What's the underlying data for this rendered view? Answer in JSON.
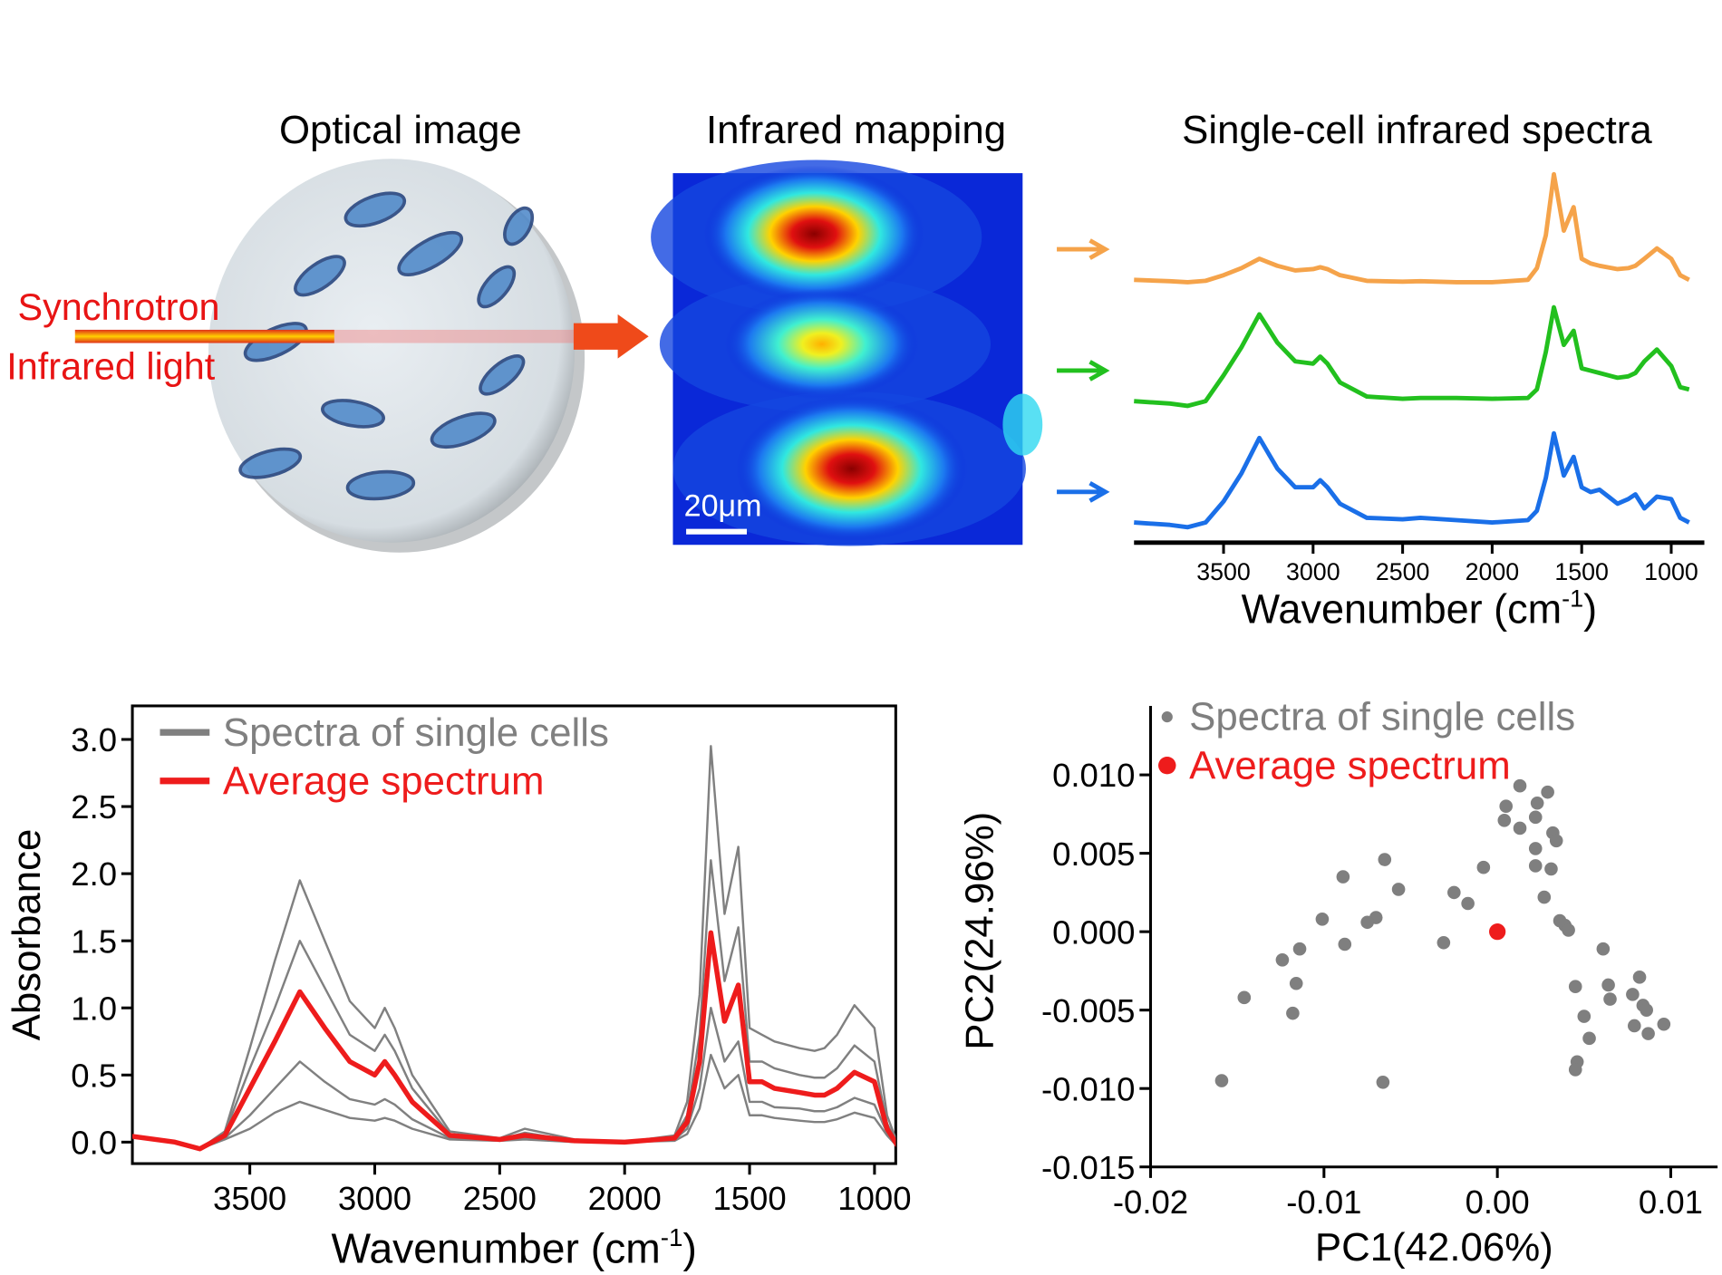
{
  "illustration": {
    "optical_title": "Optical image",
    "mapping_title": "Infrared mapping",
    "beam_label": [
      "Synchrotron",
      "Infrared light"
    ],
    "scale_bar": "20μm"
  },
  "chart_data": [
    {
      "type": "line",
      "title": "Single-cell infrared spectra",
      "x": [
        4000,
        3800,
        3700,
        3600,
        3500,
        3400,
        3300,
        3200,
        3100,
        3000,
        2960,
        2920,
        2850,
        2700,
        2500,
        2400,
        2200,
        2000,
        1800,
        1750,
        1700,
        1655,
        1600,
        1545,
        1500,
        1450,
        1400,
        1300,
        1240,
        1200,
        1150,
        1080,
        1000,
        950,
        900
      ],
      "series": [
        {
          "color": "#f5a34a",
          "values": [
            0.05,
            0.02,
            0,
            0.03,
            0.15,
            0.3,
            0.5,
            0.35,
            0.25,
            0.28,
            0.32,
            0.28,
            0.15,
            0.03,
            0.01,
            0.02,
            0,
            0,
            0.05,
            0.3,
            1.0,
            2.3,
            1.1,
            1.6,
            0.5,
            0.4,
            0.35,
            0.28,
            0.3,
            0.35,
            0.5,
            0.72,
            0.5,
            0.15,
            0.05
          ]
        },
        {
          "color": "#22c01e",
          "values": [
            0.05,
            0.0,
            -0.05,
            0.05,
            0.6,
            1.2,
            1.9,
            1.3,
            0.9,
            0.85,
            1.0,
            0.85,
            0.45,
            0.15,
            0.1,
            0.12,
            0.12,
            0.1,
            0.12,
            0.3,
            1.1,
            2.05,
            1.25,
            1.55,
            0.75,
            0.7,
            0.65,
            0.55,
            0.58,
            0.65,
            0.9,
            1.15,
            0.8,
            0.35,
            0.3
          ]
        },
        {
          "color": "#1a6fe8",
          "values": [
            0.05,
            0.0,
            -0.05,
            0.05,
            0.5,
            1.1,
            1.85,
            1.2,
            0.8,
            0.8,
            0.95,
            0.8,
            0.45,
            0.15,
            0.12,
            0.15,
            0.1,
            0.05,
            0.1,
            0.3,
            1.0,
            1.95,
            1.05,
            1.45,
            0.8,
            0.7,
            0.75,
            0.45,
            0.55,
            0.65,
            0.35,
            0.6,
            0.55,
            0.15,
            0.05
          ]
        }
      ],
      "xlim": [
        4000,
        815
      ],
      "xticks": [
        3500,
        3000,
        2500,
        2000,
        1500,
        1000
      ],
      "x_label": {
        "text": "Wavenumber (cm",
        "sup": "-1",
        "close": ")"
      }
    },
    {
      "type": "line",
      "x": [
        4000,
        3800,
        3700,
        3600,
        3500,
        3400,
        3300,
        3200,
        3100,
        3000,
        2960,
        2920,
        2850,
        2700,
        2500,
        2400,
        2200,
        2000,
        1800,
        1750,
        1700,
        1655,
        1600,
        1545,
        1500,
        1450,
        1400,
        1300,
        1240,
        1200,
        1150,
        1080,
        1000,
        950,
        900
      ],
      "series": [
        {
          "name": "Spectra of single cells",
          "color": "#808080",
          "values": [
            [
              0.05,
              0.0,
              -0.05,
              0.08,
              0.7,
              1.35,
              1.95,
              1.5,
              1.05,
              0.85,
              1.0,
              0.85,
              0.5,
              0.08,
              0.03,
              0.1,
              0.02,
              0.0,
              0.05,
              0.3,
              1.1,
              2.95,
              1.7,
              2.2,
              0.85,
              0.8,
              0.75,
              0.7,
              0.68,
              0.7,
              0.8,
              1.02,
              0.85,
              0.2,
              -0.05
            ],
            [
              0.05,
              0.0,
              -0.05,
              0.07,
              0.55,
              1.0,
              1.5,
              1.15,
              0.8,
              0.68,
              0.8,
              0.68,
              0.4,
              0.06,
              0.02,
              0.07,
              0.01,
              0.0,
              0.04,
              0.2,
              0.8,
              2.1,
              1.2,
              1.6,
              0.6,
              0.6,
              0.55,
              0.5,
              0.48,
              0.48,
              0.55,
              0.72,
              0.6,
              0.14,
              -0.05
            ],
            [
              0.05,
              0.0,
              -0.05,
              0.03,
              0.2,
              0.4,
              0.6,
              0.45,
              0.32,
              0.28,
              0.32,
              0.28,
              0.17,
              0.03,
              0.01,
              0.03,
              0.0,
              0.0,
              0.02,
              0.1,
              0.4,
              1.0,
              0.6,
              0.75,
              0.3,
              0.3,
              0.26,
              0.25,
              0.23,
              0.23,
              0.26,
              0.33,
              0.28,
              0.07,
              -0.05
            ],
            [
              0.05,
              0.0,
              -0.05,
              0.02,
              0.1,
              0.22,
              0.3,
              0.24,
              0.18,
              0.16,
              0.18,
              0.16,
              0.1,
              0.02,
              0.01,
              0.02,
              0.0,
              0.0,
              0.01,
              0.06,
              0.25,
              0.65,
              0.4,
              0.5,
              0.2,
              0.2,
              0.18,
              0.16,
              0.15,
              0.15,
              0.17,
              0.22,
              0.18,
              0.05,
              -0.05
            ]
          ]
        },
        {
          "name": "Average spectrum",
          "color": "#ee1c1c",
          "values": [
            0.05,
            0.0,
            -0.05,
            0.05,
            0.4,
            0.75,
            1.12,
            0.85,
            0.6,
            0.5,
            0.6,
            0.5,
            0.3,
            0.05,
            0.02,
            0.05,
            0.01,
            0.0,
            0.03,
            0.15,
            0.6,
            1.56,
            0.9,
            1.17,
            0.45,
            0.45,
            0.4,
            0.37,
            0.35,
            0.35,
            0.4,
            0.52,
            0.45,
            0.1,
            -0.05
          ]
        }
      ],
      "xlim": [
        3970,
        915
      ],
      "xticks": [
        3500,
        3000,
        2500,
        2000,
        1500,
        1000
      ],
      "ylim": [
        -0.16,
        3.25
      ],
      "yticks": [
        {
          "value": 0,
          "label": "0.0"
        },
        0.5,
        {
          "value": 1,
          "label": "1.0"
        },
        1.5,
        {
          "value": 2,
          "label": "2.0"
        },
        2.5,
        {
          "value": 3,
          "label": "3.0"
        }
      ],
      "y_label": "Absorbance",
      "x_label": {
        "text": "Wavenumber (cm",
        "sup": "-1",
        "close": ")"
      },
      "legend": "upper left"
    },
    {
      "type": "scatter",
      "series": [
        {
          "name": "Spectra of single cells",
          "color": "#7f7f7f",
          "x": [
            0.0013,
            0.0005,
            0.0023,
            0.0029,
            0.0004,
            0.0013,
            0.0022,
            0.0032,
            0.0034,
            0.0022,
            -0.0065,
            -0.0008,
            -0.0089,
            -0.0057,
            0.0022,
            0.0031,
            -0.0025,
            -0.0017,
            0.0027,
            -0.0101,
            -0.007,
            -0.0075,
            0.0036,
            0.0039,
            0.0041,
            -0.0031,
            -0.0088,
            0.0061,
            -0.0114,
            -0.0124,
            -0.0116,
            0.0045,
            0.0064,
            0.0082,
            0.0078,
            0.0065,
            -0.0146,
            -0.0118,
            0.0084,
            0.0086,
            0.0079,
            0.005,
            0.0096,
            0.0087,
            0.0053,
            0.0046,
            0.0045,
            -0.0159,
            -0.0066
          ],
          "y": [
            0.0093,
            0.008,
            0.0082,
            0.0089,
            0.0071,
            0.0066,
            0.0073,
            0.0063,
            0.0058,
            0.0053,
            0.0046,
            0.0041,
            0.0035,
            0.0027,
            0.0042,
            0.004,
            0.0025,
            0.0018,
            0.0022,
            0.0008,
            0.0009,
            0.0006,
            0.0007,
            0.0004,
            0.0001,
            -0.0007,
            -0.0008,
            -0.0011,
            -0.0011,
            -0.0018,
            -0.0033,
            -0.0035,
            -0.0034,
            -0.0029,
            -0.004,
            -0.0043,
            -0.0042,
            -0.0052,
            -0.0047,
            -0.005,
            -0.006,
            -0.0054,
            -0.0059,
            -0.0065,
            -0.0068,
            -0.0083,
            -0.0088,
            -0.0095,
            -0.0096
          ]
        },
        {
          "name": "Average spectrum",
          "color": "#ee1c1c",
          "x": [
            0
          ],
          "y": [
            0
          ]
        }
      ],
      "xlim": [
        -0.02,
        0.0127
      ],
      "xticks": [
        -0.02,
        -0.01,
        {
          "value": 0,
          "label": "0.00"
        },
        0.01
      ],
      "ylim": [
        -0.015,
        0.0144
      ],
      "yticks": [
        -0.015,
        {
          "value": -0.01,
          "label": "-0.010"
        },
        -0.005,
        {
          "value": 0,
          "label": "0.000"
        },
        0.005,
        {
          "value": 0.01,
          "label": "0.010"
        }
      ],
      "x_label": "PC1(42.06%)",
      "y_label": "PC2(24.96%)",
      "legend": "upper left"
    }
  ]
}
